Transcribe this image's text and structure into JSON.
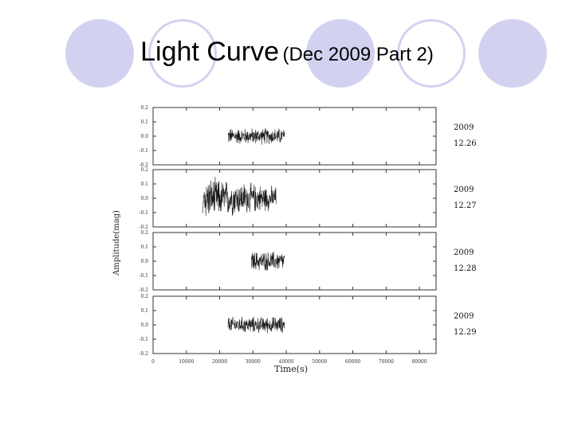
{
  "slide": {
    "title_main": "Light Curve",
    "title_sub": "(Dec 2009 Part 2)"
  },
  "colors": {
    "circle": "#d2d2f0",
    "trace": "#1a1a1a",
    "axis": "#333333"
  },
  "chart_data": {
    "type": "line",
    "xlabel": "Time(s)",
    "ylabel": "Amplitude(mag)",
    "xlim": [
      0,
      85000
    ],
    "ylim": [
      -0.2,
      0.2
    ],
    "x_ticks": [
      "0",
      "10000",
      "20000",
      "30000",
      "40000",
      "50000",
      "60000",
      "70000",
      "80000"
    ],
    "y_ticks": [
      "0.2",
      "0.1",
      "0.0",
      "-0.1",
      "-0.2"
    ],
    "grid": false,
    "panels": [
      {
        "date_year": "2009",
        "date_day": "12.26",
        "x_start": 22500,
        "x_end": 39500,
        "amplitude": 0.05
      },
      {
        "date_year": "2009",
        "date_day": "12.27",
        "x_start": 15000,
        "x_end": 37000,
        "amplitude": 0.13
      },
      {
        "date_year": "2009",
        "date_day": "12.28",
        "x_start": 29500,
        "x_end": 39500,
        "amplitude": 0.06
      },
      {
        "date_year": "2009",
        "date_day": "12.29",
        "x_start": 22500,
        "x_end": 39500,
        "amplitude": 0.05
      }
    ]
  }
}
